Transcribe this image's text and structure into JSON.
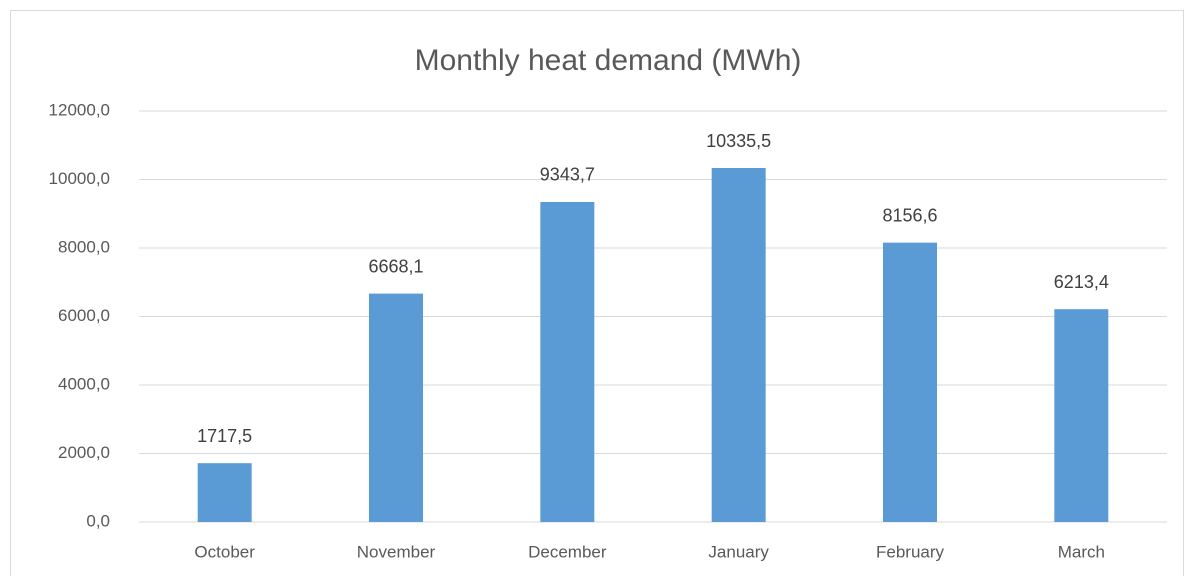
{
  "chart_data": {
    "type": "bar",
    "title": "Monthly heat demand (MWh)",
    "categories": [
      "October",
      "November",
      "December",
      "January",
      "February",
      "March"
    ],
    "values": [
      1717.5,
      6668.1,
      9343.7,
      10335.5,
      8156.6,
      6213.4
    ],
    "value_labels": [
      "1717,5",
      "6668,1",
      "9343,7",
      "10335,5",
      "8156,6",
      "6213,4"
    ],
    "color": "#5b9bd5",
    "ylim": [
      0,
      12000
    ],
    "yticks": [
      {
        "value": 0,
        "label": "0,0"
      },
      {
        "value": 2000,
        "label": "2000,0"
      },
      {
        "value": 4000,
        "label": "4000,0"
      },
      {
        "value": 6000,
        "label": "6000,0"
      },
      {
        "value": 8000,
        "label": "8000,0"
      },
      {
        "value": 10000,
        "label": "10000,0"
      },
      {
        "value": 12000,
        "label": "12000,0"
      }
    ],
    "grid": true
  }
}
